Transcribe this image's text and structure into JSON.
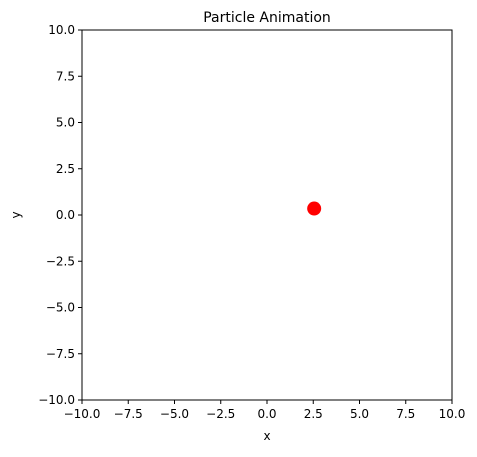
{
  "chart_data": {
    "type": "scatter",
    "title": "Particle Animation",
    "xlabel": "x",
    "ylabel": "y",
    "xlim": [
      -10,
      10
    ],
    "ylim": [
      -10,
      10
    ],
    "xticks": [
      -10,
      -7.5,
      -5,
      -2.5,
      0,
      2.5,
      5,
      7.5,
      10
    ],
    "yticks": [
      -10,
      -7.5,
      -5,
      -2.5,
      0,
      2.5,
      5,
      7.5,
      10
    ],
    "xtick_labels": [
      "−10.0",
      "−7.5",
      "−5.0",
      "−2.5",
      "0.0",
      "2.5",
      "5.0",
      "7.5",
      "10.0"
    ],
    "ytick_labels": [
      "−10.0",
      "−7.5",
      "−5.0",
      "−2.5",
      "0.0",
      "2.5",
      "5.0",
      "7.5",
      "10.0"
    ],
    "grid": false,
    "legend": "none",
    "series": [
      {
        "points": [
          {
            "x": 2.55,
            "y": 0.35
          }
        ],
        "color": "#ff0000",
        "marker": "circle"
      }
    ]
  }
}
